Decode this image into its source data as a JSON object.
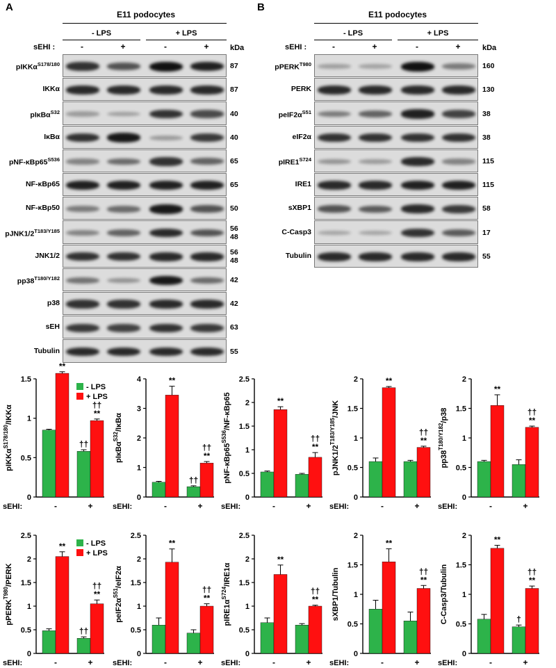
{
  "colors": {
    "minus_lps": "#2db34a",
    "plus_lps": "#ff1010"
  },
  "panel_a": {
    "letter": "A",
    "title": "E11 podocytes",
    "group_minus": "- LPS",
    "group_plus": "+ LPS",
    "sehi_label": "sEHI :",
    "lane_signs": [
      "-",
      "+",
      "-",
      "+"
    ],
    "kda_label": "kDa",
    "blots": [
      {
        "label": "pIKKα",
        "sup": "S178/180",
        "kda": "87",
        "intensity": [
          0.8,
          0.6,
          1.0,
          0.9
        ]
      },
      {
        "label": "IKKα",
        "sup": "",
        "kda": "87",
        "intensity": [
          0.85,
          0.85,
          0.85,
          0.85
        ]
      },
      {
        "label": "pIκBα",
        "sup": "S32",
        "kda": "40",
        "intensity": [
          0.15,
          0.12,
          0.8,
          0.65
        ]
      },
      {
        "label": "IκBα",
        "sup": "",
        "kda": "40",
        "intensity": [
          0.8,
          0.95,
          0.15,
          0.75
        ]
      },
      {
        "label": "pNF-κBp65",
        "sup": "S536",
        "kda": "65",
        "intensity": [
          0.3,
          0.45,
          0.8,
          0.5
        ]
      },
      {
        "label": "NF-κBp65",
        "sup": "",
        "kda": "65",
        "intensity": [
          0.9,
          0.9,
          0.9,
          0.9
        ]
      },
      {
        "label": "NF-κBp50",
        "sup": "",
        "kda": "50",
        "intensity": [
          0.35,
          0.45,
          0.95,
          0.6
        ]
      },
      {
        "label": "pJNK1/2",
        "sup": "T183/Y185",
        "kda": "56\n48",
        "intensity": [
          0.3,
          0.5,
          0.85,
          0.6
        ]
      },
      {
        "label": "JNK1/2",
        "sup": "",
        "kda": "56\n48",
        "intensity": [
          0.8,
          0.8,
          0.85,
          0.85
        ]
      },
      {
        "label": "pp38",
        "sup": "T180/Y182",
        "kda": "42",
        "intensity": [
          0.4,
          0.2,
          0.95,
          0.45
        ]
      },
      {
        "label": "p38",
        "sup": "",
        "kda": "42",
        "intensity": [
          0.8,
          0.8,
          0.85,
          0.85
        ]
      },
      {
        "label": "sEH",
        "sup": "",
        "kda": "63",
        "intensity": [
          0.75,
          0.7,
          0.8,
          0.75
        ]
      },
      {
        "label": "Tubulin",
        "sup": "",
        "kda": "55",
        "intensity": [
          0.85,
          0.85,
          0.85,
          0.85
        ]
      }
    ]
  },
  "panel_b": {
    "letter": "B",
    "title": "E11 podocytes",
    "group_minus": "- LPS",
    "group_plus": "+ LPS",
    "sehi_label": "sEHI :",
    "lane_signs": [
      "-",
      "+",
      "-",
      "+"
    ],
    "kda_label": "kDa",
    "blots": [
      {
        "label": "pPERK",
        "sup": "T980",
        "kda": "160",
        "intensity": [
          0.12,
          0.1,
          1.0,
          0.35
        ]
      },
      {
        "label": "PERK",
        "sup": "",
        "kda": "130",
        "intensity": [
          0.85,
          0.85,
          0.85,
          0.85
        ]
      },
      {
        "label": "peIF2α",
        "sup": "S51",
        "kda": "38",
        "intensity": [
          0.35,
          0.5,
          0.9,
          0.7
        ]
      },
      {
        "label": "eIF2α",
        "sup": "",
        "kda": "38",
        "intensity": [
          0.8,
          0.8,
          0.8,
          0.8
        ]
      },
      {
        "label": "pIRE1",
        "sup": "S724",
        "kda": "115",
        "intensity": [
          0.2,
          0.15,
          0.85,
          0.3
        ]
      },
      {
        "label": "IRE1",
        "sup": "",
        "kda": "115",
        "intensity": [
          0.85,
          0.85,
          0.9,
          0.9
        ]
      },
      {
        "label": "sXBP1",
        "sup": "",
        "kda": "58",
        "intensity": [
          0.6,
          0.55,
          0.85,
          0.75
        ]
      },
      {
        "label": "C-Casp3",
        "sup": "",
        "kda": "17",
        "intensity": [
          0.1,
          0.1,
          0.8,
          0.55
        ]
      },
      {
        "label": "Tubulin",
        "sup": "",
        "kda": "55",
        "intensity": [
          0.85,
          0.85,
          0.85,
          0.85
        ]
      }
    ]
  },
  "legend": {
    "minus": "- LPS",
    "plus": "+ LPS"
  },
  "chart_data": [
    {
      "type": "bar",
      "ylabel": "pIKKα",
      "ylabel_sup": "S178/180",
      "ylabel_tail": "/IKKα",
      "ylim": [
        0,
        1.5
      ],
      "yticks": [
        "0",
        "0.5",
        "1",
        "1.5"
      ],
      "yvals": [
        0,
        0.5,
        1,
        1.5
      ],
      "categories": [
        "-",
        "+"
      ],
      "xlabel": "sEHI:",
      "legend": true,
      "series": [
        {
          "name": "- LPS",
          "values": [
            0.85,
            0.58
          ],
          "errors": [
            0.01,
            0.02
          ]
        },
        {
          "name": "+ LPS",
          "values": [
            1.57,
            0.97
          ],
          "errors": [
            0.02,
            0.02
          ]
        }
      ],
      "annotations": [
        [
          "",
          "††"
        ],
        [
          "**",
          "††\n**"
        ]
      ]
    },
    {
      "type": "bar",
      "ylabel": "pIκBα",
      "ylabel_sup": "S32",
      "ylabel_tail": "/IκBα",
      "ylim": [
        0,
        4
      ],
      "yticks": [
        "0",
        "1",
        "2",
        "3",
        "4"
      ],
      "yvals": [
        0,
        1,
        2,
        3,
        4
      ],
      "categories": [
        "-",
        "+"
      ],
      "xlabel": "sEHI:",
      "series": [
        {
          "name": "- LPS",
          "values": [
            0.5,
            0.35
          ],
          "errors": [
            0.03,
            0.03
          ]
        },
        {
          "name": "+ LPS",
          "values": [
            3.45,
            1.15
          ],
          "errors": [
            0.3,
            0.05
          ]
        }
      ],
      "annotations": [
        [
          "",
          "††"
        ],
        [
          "**",
          "††\n**"
        ]
      ]
    },
    {
      "type": "bar",
      "ylabel": "pNF-κBp65",
      "ylabel_sup": "S536",
      "ylabel_tail": "/NF-κBp65",
      "ylim": [
        0,
        2.5
      ],
      "yticks": [
        "0",
        "0.5",
        "1",
        "1.5",
        "2",
        "2.5"
      ],
      "yvals": [
        0,
        0.5,
        1,
        1.5,
        2,
        2.5
      ],
      "categories": [
        "-",
        "+"
      ],
      "xlabel": "sEHI:",
      "series": [
        {
          "name": "- LPS",
          "values": [
            0.53,
            0.48
          ],
          "errors": [
            0.02,
            0.02
          ]
        },
        {
          "name": "+ LPS",
          "values": [
            1.85,
            0.84
          ],
          "errors": [
            0.06,
            0.1
          ]
        }
      ],
      "annotations": [
        [
          "",
          ""
        ],
        [
          "**",
          "††\n**"
        ]
      ]
    },
    {
      "type": "bar",
      "ylabel": "pJNK1/2",
      "ylabel_sup": "T183/Y185",
      "ylabel_tail": "/JNK",
      "ylim": [
        0,
        2
      ],
      "yticks": [
        "0",
        "0.5",
        "1",
        "1.5",
        "2"
      ],
      "yvals": [
        0,
        0.5,
        1,
        1.5,
        2
      ],
      "categories": [
        "-",
        "+"
      ],
      "xlabel": "sEHI:",
      "series": [
        {
          "name": "- LPS",
          "values": [
            0.6,
            0.6
          ],
          "errors": [
            0.06,
            0.02
          ]
        },
        {
          "name": "+ LPS",
          "values": [
            1.85,
            0.84
          ],
          "errors": [
            0.02,
            0.02
          ]
        }
      ],
      "annotations": [
        [
          "",
          ""
        ],
        [
          "**",
          "††\n**"
        ]
      ]
    },
    {
      "type": "bar",
      "ylabel": "pp38",
      "ylabel_sup": "T180/Y182",
      "ylabel_tail": "/p38",
      "ylim": [
        0,
        2
      ],
      "yticks": [
        "0",
        "0.5",
        "1",
        "1.5",
        "2"
      ],
      "yvals": [
        0,
        0.5,
        1,
        1.5,
        2
      ],
      "categories": [
        "-",
        "+"
      ],
      "xlabel": "sEHI:",
      "series": [
        {
          "name": "- LPS",
          "values": [
            0.6,
            0.55
          ],
          "errors": [
            0.02,
            0.08
          ]
        },
        {
          "name": "+ LPS",
          "values": [
            1.55,
            1.18
          ],
          "errors": [
            0.18,
            0.02
          ]
        }
      ],
      "annotations": [
        [
          "",
          ""
        ],
        [
          "**",
          "††\n**"
        ]
      ]
    },
    {
      "type": "bar",
      "ylabel": "pPERK",
      "ylabel_sup": "T980",
      "ylabel_tail": "/PERK",
      "ylim": [
        0,
        2.5
      ],
      "yticks": [
        "0",
        "0.5",
        "1",
        "1.5",
        "2",
        "2.5"
      ],
      "yvals": [
        0,
        0.5,
        1,
        1.5,
        2,
        2.5
      ],
      "categories": [
        "-",
        "+"
      ],
      "xlabel": "sEHI:",
      "legend": true,
      "series": [
        {
          "name": "- LPS",
          "values": [
            0.48,
            0.32
          ],
          "errors": [
            0.04,
            0.03
          ]
        },
        {
          "name": "+ LPS",
          "values": [
            2.05,
            1.05
          ],
          "errors": [
            0.1,
            0.08
          ]
        }
      ],
      "annotations": [
        [
          "",
          "††"
        ],
        [
          "**",
          "††\n**"
        ]
      ]
    },
    {
      "type": "bar",
      "ylabel": "peIF2α",
      "ylabel_sup": "S51",
      "ylabel_tail": "/eIF2α",
      "ylim": [
        0,
        2.5
      ],
      "yticks": [
        "0",
        "0.5",
        "1",
        "1.5",
        "2",
        "2.5"
      ],
      "yvals": [
        0,
        0.5,
        1,
        1.5,
        2,
        2.5
      ],
      "categories": [
        "-",
        "+"
      ],
      "xlabel": "sEHI:",
      "series": [
        {
          "name": "- LPS",
          "values": [
            0.6,
            0.43
          ],
          "errors": [
            0.15,
            0.07
          ]
        },
        {
          "name": "+ LPS",
          "values": [
            1.93,
            1.0
          ],
          "errors": [
            0.28,
            0.05
          ]
        }
      ],
      "annotations": [
        [
          "",
          ""
        ],
        [
          "**",
          "††\n**"
        ]
      ]
    },
    {
      "type": "bar",
      "ylabel": "pIRE1α",
      "ylabel_sup": "S724",
      "ylabel_tail": "/IRE1α",
      "ylim": [
        0,
        2.5
      ],
      "yticks": [
        "0",
        "0.5",
        "1",
        "1.5",
        "2",
        "2.5"
      ],
      "yvals": [
        0,
        0.5,
        1,
        1.5,
        2,
        2.5
      ],
      "categories": [
        "-",
        "+"
      ],
      "xlabel": "sEHI:",
      "series": [
        {
          "name": "- LPS",
          "values": [
            0.65,
            0.6
          ],
          "errors": [
            0.1,
            0.03
          ]
        },
        {
          "name": "+ LPS",
          "values": [
            1.67,
            1.0
          ],
          "errors": [
            0.2,
            0.02
          ]
        }
      ],
      "annotations": [
        [
          "",
          ""
        ],
        [
          "**",
          "††\n**"
        ]
      ]
    },
    {
      "type": "bar",
      "ylabel": "sXBP1/Tubulin",
      "ylabel_sup": "",
      "ylabel_tail": "",
      "ylim": [
        0,
        2
      ],
      "yticks": [
        "0",
        "0.5",
        "1",
        "1.5",
        "2"
      ],
      "yvals": [
        0,
        0.5,
        1,
        1.5,
        2
      ],
      "categories": [
        "-",
        "+"
      ],
      "xlabel": "sEHI:",
      "series": [
        {
          "name": "- LPS",
          "values": [
            0.75,
            0.55
          ],
          "errors": [
            0.15,
            0.15
          ]
        },
        {
          "name": "+ LPS",
          "values": [
            1.55,
            1.1
          ],
          "errors": [
            0.22,
            0.05
          ]
        }
      ],
      "annotations": [
        [
          "",
          ""
        ],
        [
          "**",
          "††\n**"
        ]
      ]
    },
    {
      "type": "bar",
      "ylabel": "C-Casp3/Tubulin",
      "ylabel_sup": "",
      "ylabel_tail": "",
      "ylim": [
        0,
        2
      ],
      "yticks": [
        "0",
        "0.5",
        "1",
        "1.5",
        "2"
      ],
      "yvals": [
        0,
        0.5,
        1,
        1.5,
        2
      ],
      "categories": [
        "-",
        "+"
      ],
      "xlabel": "sEHI:",
      "series": [
        {
          "name": "- LPS",
          "values": [
            0.58,
            0.45
          ],
          "errors": [
            0.08,
            0.03
          ]
        },
        {
          "name": "+ LPS",
          "values": [
            1.78,
            1.1
          ],
          "errors": [
            0.05,
            0.04
          ]
        }
      ],
      "annotations": [
        [
          "",
          "†"
        ],
        [
          "**",
          "††\n**"
        ]
      ]
    }
  ]
}
